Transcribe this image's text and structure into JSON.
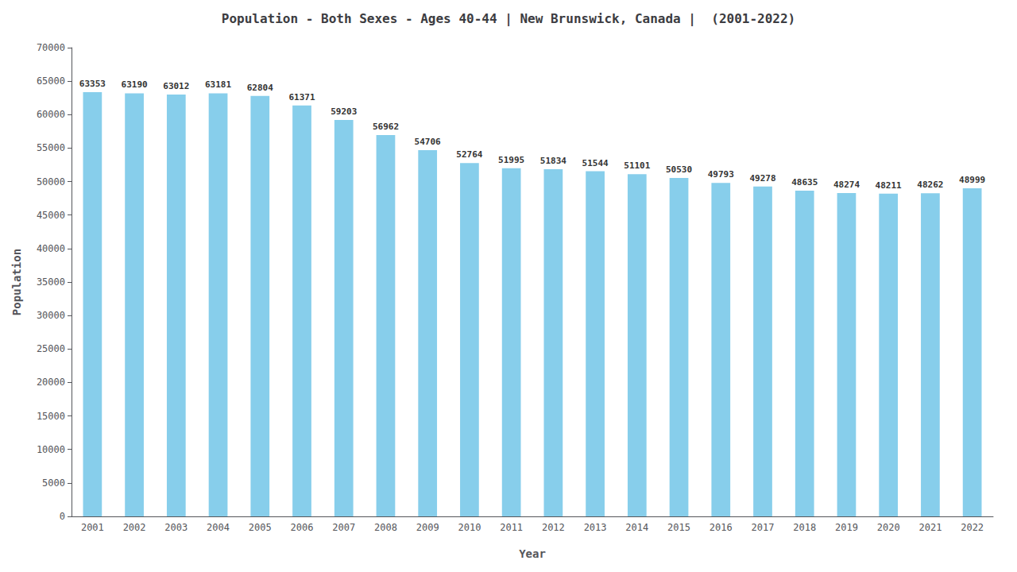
{
  "chart_data": {
    "type": "bar",
    "title": "Population - Both Sexes - Ages 40-44 | New Brunswick, Canada |  (2001-2022)",
    "xlabel": "Year",
    "ylabel": "Population",
    "categories": [
      "2001",
      "2002",
      "2003",
      "2004",
      "2005",
      "2006",
      "2007",
      "2008",
      "2009",
      "2010",
      "2011",
      "2012",
      "2013",
      "2014",
      "2015",
      "2016",
      "2017",
      "2018",
      "2019",
      "2020",
      "2021",
      "2022"
    ],
    "values": [
      63353,
      63190,
      63012,
      63181,
      62804,
      61371,
      59203,
      56962,
      54706,
      52764,
      51995,
      51834,
      51544,
      51101,
      50530,
      49793,
      49278,
      48635,
      48274,
      48211,
      48262,
      48999
    ],
    "color": "#87CEEB",
    "ylim": [
      0,
      70000
    ],
    "yticks": [
      0,
      5000,
      10000,
      15000,
      20000,
      25000,
      30000,
      35000,
      40000,
      45000,
      50000,
      55000,
      60000,
      65000,
      70000
    ],
    "grid": false,
    "data_labels": true
  }
}
